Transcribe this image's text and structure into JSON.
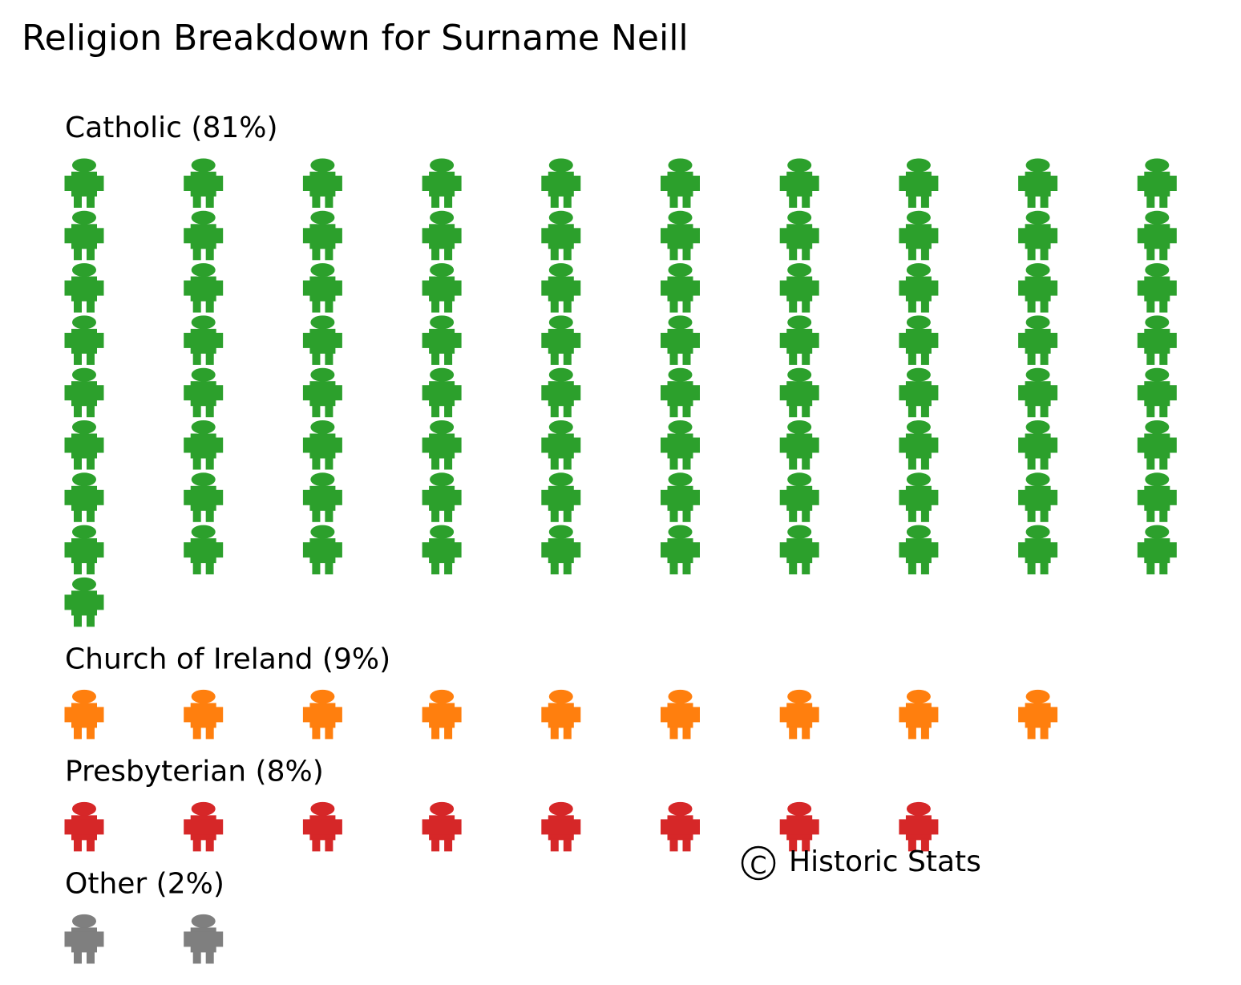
{
  "chart_data": {
    "type": "pictogram",
    "title": "Religion Breakdown for Surname Neill",
    "icon": "person-icon",
    "units_per_icon_percent": 1,
    "icons_per_row": 10,
    "groups": [
      {
        "name": "Catholic",
        "percent": 81,
        "label": "Catholic (81%)",
        "color": "#2ca02c"
      },
      {
        "name": "Church of Ireland",
        "percent": 9,
        "label": "Church of Ireland (9%)",
        "color": "#ff7f0e"
      },
      {
        "name": "Presbyterian",
        "percent": 8,
        "label": "Presbyterian (8%)",
        "color": "#d62728"
      },
      {
        "name": "Other",
        "percent": 2,
        "label": "Other (2%)",
        "color": "#7f7f7f"
      }
    ],
    "copyright": {
      "symbol": "C",
      "text": "Historic Stats"
    }
  }
}
